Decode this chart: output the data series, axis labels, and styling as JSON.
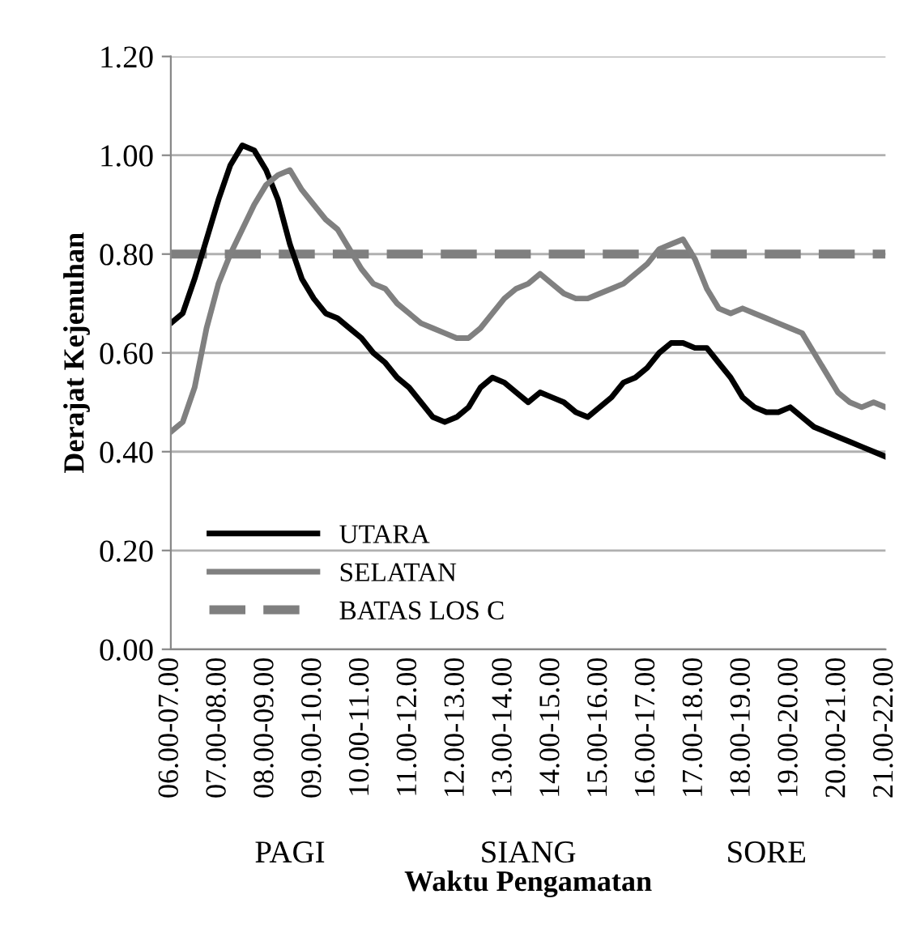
{
  "chart_data": {
    "type": "line",
    "xlabel": "Waktu Pengamatan",
    "ylabel": "Derajat Kejenuhan",
    "categories": [
      "06.00-07.00",
      null,
      null,
      null,
      "07.00-08.00",
      null,
      null,
      null,
      "08.00-09.00",
      null,
      null,
      null,
      "09.00-10.00",
      null,
      null,
      null,
      "10.00-11.00",
      null,
      null,
      null,
      "11.00-12.00",
      null,
      null,
      null,
      "12.00-13.00",
      null,
      null,
      null,
      "13.00-14.00",
      null,
      null,
      null,
      "14.00-15.00",
      null,
      null,
      null,
      "15.00-16.00",
      null,
      null,
      null,
      "16.00-17.00",
      null,
      null,
      null,
      "17.00-18.00",
      null,
      null,
      null,
      "18.00-19.00",
      null,
      null,
      null,
      "19.00-20.00",
      null,
      null,
      null,
      "20.00-21.00",
      null,
      null,
      null,
      "21.00-22.00"
    ],
    "ylim": [
      0,
      1.2
    ],
    "yticks": [
      {
        "value": 0,
        "label": "0.00"
      },
      {
        "value": 0.2,
        "label": "0.20"
      },
      {
        "value": 0.4,
        "label": "0.40"
      },
      {
        "value": 0.6,
        "label": "0.60"
      },
      {
        "value": 0.8,
        "label": "0.80"
      },
      {
        "value": 1.0,
        "label": "1.00"
      },
      {
        "value": 1.2,
        "label": "1.20"
      }
    ],
    "grid": "y",
    "legend": "bottom left",
    "line_style": "solid",
    "series": [
      {
        "name": "UTARA",
        "color": "#000000",
        "values": [
          0.66,
          0.68,
          0.75,
          0.83,
          0.91,
          0.98,
          1.02,
          1.01,
          0.97,
          0.91,
          0.82,
          0.75,
          0.71,
          0.68,
          0.67,
          0.65,
          0.63,
          0.6,
          0.58,
          0.55,
          0.53,
          0.5,
          0.47,
          0.46,
          0.47,
          0.49,
          0.53,
          0.55,
          0.54,
          0.52,
          0.5,
          0.52,
          0.51,
          0.5,
          0.48,
          0.47,
          0.49,
          0.51,
          0.54,
          0.55,
          0.57,
          0.6,
          0.62,
          0.62,
          0.61,
          0.61,
          0.58,
          0.55,
          0.51,
          0.49,
          0.48,
          0.48,
          0.49,
          0.47,
          0.45,
          0.44,
          0.43,
          0.42,
          0.41,
          0.4,
          0.39
        ]
      },
      {
        "name": "SELATAN",
        "color": "#808080",
        "values": [
          0.44,
          0.46,
          0.53,
          0.65,
          0.74,
          0.8,
          0.85,
          0.9,
          0.94,
          0.96,
          0.97,
          0.93,
          0.9,
          0.87,
          0.85,
          0.81,
          0.77,
          0.74,
          0.73,
          0.7,
          0.68,
          0.66,
          0.65,
          0.64,
          0.63,
          0.63,
          0.65,
          0.68,
          0.71,
          0.73,
          0.74,
          0.76,
          0.74,
          0.72,
          0.71,
          0.71,
          0.72,
          0.73,
          0.74,
          0.76,
          0.78,
          0.81,
          0.82,
          0.83,
          0.79,
          0.73,
          0.69,
          0.68,
          0.69,
          0.68,
          0.67,
          0.66,
          0.65,
          0.64,
          0.6,
          0.56,
          0.52,
          0.5,
          0.49,
          0.5,
          0.49
        ]
      }
    ],
    "ref_lines": [
      {
        "axis": "y",
        "value": 0.8,
        "label": "BATAS LOS C",
        "color": "#7f7f7f",
        "line_style": "dashed"
      }
    ],
    "annotations": [
      "PAGI",
      "SIANG",
      "SORE"
    ]
  }
}
